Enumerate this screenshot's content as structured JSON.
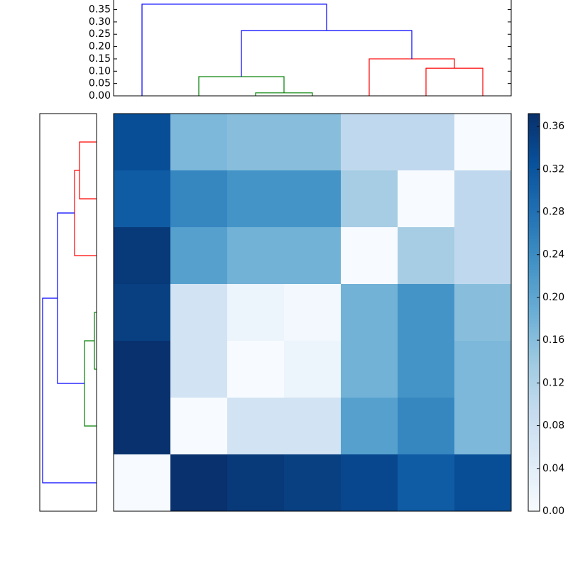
{
  "chart_data": [
    {
      "type": "dendrogram",
      "orientation": "top",
      "ylim": [
        0,
        0.389
      ],
      "yticks": [
        {
          "value": 0,
          "label": "0.00"
        },
        0.05,
        {
          "value": 0.1,
          "label": "0.10"
        },
        0.15,
        {
          "value": 0.2,
          "label": "0.20"
        },
        0.25,
        {
          "value": 0.3,
          "label": "0.30"
        },
        0.35
      ],
      "links": [
        {
          "color": "#008000",
          "x": [
            2,
            2,
            3,
            3
          ],
          "y": [
            0,
            0.012,
            0.012,
            0
          ]
        },
        {
          "color": "#008000",
          "x": [
            1,
            1,
            2.5,
            2.5
          ],
          "y": [
            0,
            0.078,
            0.078,
            0.012
          ]
        },
        {
          "color": "#ff0000",
          "x": [
            5,
            5,
            6,
            6
          ],
          "y": [
            0,
            0.112,
            0.112,
            0
          ]
        },
        {
          "color": "#ff0000",
          "x": [
            4,
            4,
            5.5,
            5.5
          ],
          "y": [
            0,
            0.15,
            0.15,
            0.112
          ]
        },
        {
          "color": "#0000ff",
          "x": [
            1.75,
            1.75,
            4.75,
            4.75
          ],
          "y": [
            0.078,
            0.265,
            0.265,
            0.15
          ]
        },
        {
          "color": "#0000ff",
          "x": [
            0,
            0,
            3.25,
            3.25
          ],
          "y": [
            0,
            0.372,
            0.372,
            0.265
          ]
        }
      ]
    },
    {
      "type": "dendrogram",
      "orientation": "left",
      "xlim": [
        0,
        0.4
      ],
      "links": [
        {
          "color": "#ff0000",
          "y": [
            0,
            0,
            1,
            1
          ],
          "x": [
            0,
            0.12,
            0.12,
            0
          ]
        },
        {
          "color": "#ff0000",
          "y": [
            0.5,
            0.5,
            2,
            2
          ],
          "x": [
            0.12,
            0.155,
            0.155,
            0
          ]
        },
        {
          "color": "#008000",
          "y": [
            3,
            3,
            4,
            4
          ],
          "x": [
            0,
            0.015,
            0.015,
            0
          ]
        },
        {
          "color": "#008000",
          "y": [
            3.5,
            3.5,
            5,
            5
          ],
          "x": [
            0.015,
            0.085,
            0.085,
            0
          ]
        },
        {
          "color": "#0000ff",
          "y": [
            1.25,
            1.25,
            4.25,
            4.25
          ],
          "x": [
            0.155,
            0.275,
            0.275,
            0.085
          ]
        },
        {
          "color": "#0000ff",
          "y": [
            2.75,
            2.75,
            6,
            6
          ],
          "x": [
            0.275,
            0.38,
            0.38,
            0
          ]
        }
      ]
    },
    {
      "type": "heatmap",
      "colormap": "Blues",
      "values": [
        [
          0.33,
          0.17,
          0.16,
          0.16,
          0.1,
          0.1,
          0.0
        ],
        [
          0.31,
          0.25,
          0.23,
          0.23,
          0.13,
          0.0,
          0.1
        ],
        [
          0.36,
          0.21,
          0.18,
          0.18,
          0.0,
          0.13,
          0.1
        ],
        [
          0.35,
          0.07,
          0.02,
          0.01,
          0.18,
          0.23,
          0.16
        ],
        [
          0.37,
          0.07,
          0.0,
          0.02,
          0.18,
          0.23,
          0.17
        ],
        [
          0.37,
          0.0,
          0.07,
          0.07,
          0.21,
          0.25,
          0.17
        ],
        [
          0.0,
          0.37,
          0.36,
          0.35,
          0.34,
          0.31,
          0.33
        ]
      ],
      "clim": [
        0,
        0.372
      ],
      "cticks": [
        {
          "value": 0,
          "label": "0.00"
        },
        0.04,
        0.08,
        0.12,
        0.16,
        {
          "value": 0.2,
          "label": "0.20"
        },
        0.24,
        0.28,
        0.32,
        0.36
      ]
    }
  ]
}
